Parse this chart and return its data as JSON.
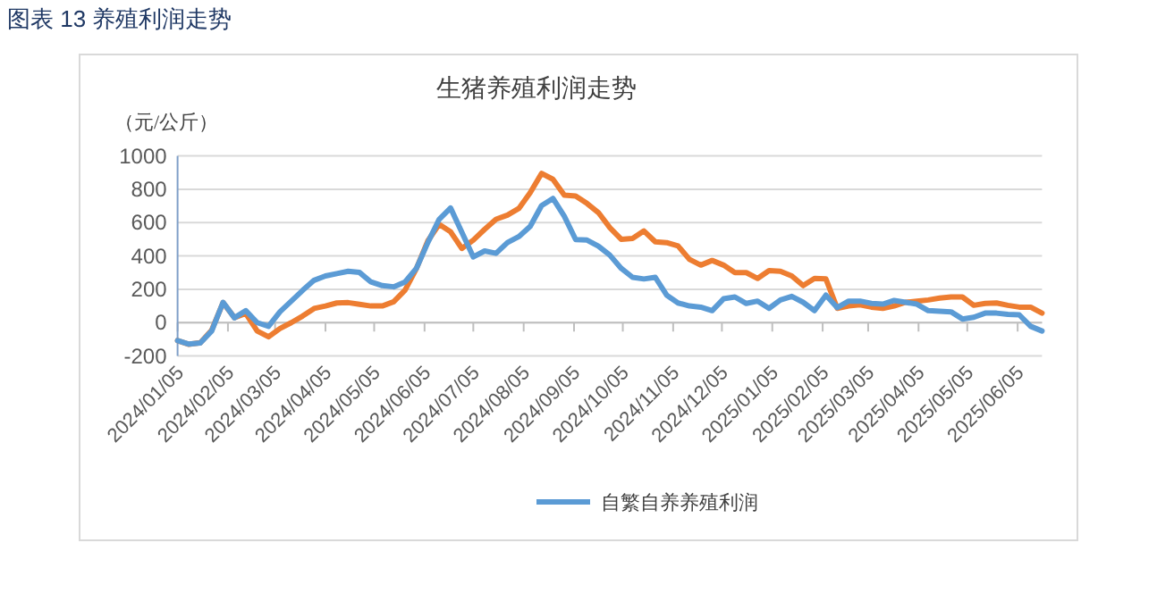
{
  "chart_data": {
    "type": "line",
    "title": "图表 13 养殖利润走势",
    "subtitle": "生猪养殖利润走势",
    "ylabel": "（元/公斤）",
    "x": [
      "2024-01-05",
      "2024-01-12",
      "2024-01-19",
      "2024-01-26",
      "2024-02-02",
      "2024-02-09",
      "2024-02-16",
      "2024-02-23",
      "2024-03-01",
      "2024-03-08",
      "2024-03-15",
      "2024-03-22",
      "2024-03-29",
      "2024-04-05",
      "2024-04-12",
      "2024-04-19",
      "2024-04-26",
      "2024-05-03",
      "2024-05-10",
      "2024-05-17",
      "2024-05-24",
      "2024-05-31",
      "2024-06-07",
      "2024-06-14",
      "2024-06-21",
      "2024-06-28",
      "2024-07-05",
      "2024-07-12",
      "2024-07-19",
      "2024-07-26",
      "2024-08-02",
      "2024-08-09",
      "2024-08-16",
      "2024-08-23",
      "2024-08-30",
      "2024-09-06",
      "2024-09-13",
      "2024-09-20",
      "2024-09-27",
      "2024-10-04",
      "2024-10-11",
      "2024-10-18",
      "2024-10-25",
      "2024-11-01",
      "2024-11-08",
      "2024-11-15",
      "2024-11-22",
      "2024-11-29",
      "2024-12-06",
      "2024-12-13",
      "2024-12-20",
      "2024-12-27",
      "2025-01-03",
      "2025-01-10",
      "2025-01-17",
      "2025-01-24",
      "2025-01-31",
      "2025-02-07",
      "2025-02-14",
      "2025-02-21",
      "2025-02-28",
      "2025-03-07",
      "2025-03-14",
      "2025-03-21",
      "2025-03-28",
      "2025-04-04",
      "2025-04-11",
      "2025-04-18",
      "2025-04-25",
      "2025-05-02",
      "2025-05-09",
      "2025-05-16",
      "2025-05-23",
      "2025-05-30",
      "2025-06-06",
      "2025-06-13",
      "2025-06-20"
    ],
    "series": [
      {
        "name": "自繁自养养殖利润",
        "color": "#5b9bd5",
        "values": [
          -108,
          -129,
          -122,
          -50,
          122,
          29,
          72,
          0,
          -22,
          65,
          129,
          194,
          254,
          280,
          294,
          308,
          301,
          244,
          222,
          215,
          244,
          326,
          480,
          620,
          688,
          541,
          394,
          430,
          416,
          480,
          516,
          577,
          702,
          745,
          638,
          498,
          495,
          459,
          405,
          326,
          272,
          262,
          272,
          165,
          118,
          100,
          93,
          72,
          143,
          154,
          115,
          129,
          86,
          136,
          158,
          122,
          72,
          165,
          90,
          129,
          129,
          115,
          111,
          133,
          122,
          111,
          72,
          68,
          65,
          22,
          32,
          57,
          57,
          50,
          47,
          -22,
          -50
        ]
      },
      {
        "color": "#ed7d31",
        "values": [
          -108,
          -130,
          -120,
          -45,
          120,
          30,
          55,
          -50,
          -85,
          -35,
          0,
          40,
          85,
          100,
          118,
          120,
          110,
          100,
          100,
          125,
          195,
          325,
          490,
          590,
          545,
          445,
          495,
          560,
          620,
          645,
          685,
          780,
          895,
          860,
          765,
          760,
          715,
          660,
          570,
          500,
          505,
          550,
          485,
          480,
          460,
          380,
          345,
          373,
          345,
          300,
          300,
          265,
          312,
          308,
          280,
          222,
          265,
          262,
          86,
          100,
          107,
          93,
          86,
          100,
          122,
          129,
          136,
          147,
          154,
          154,
          104,
          115,
          118,
          104,
          93,
          93,
          57
        ]
      }
    ],
    "xlim": [
      "2024-01-05",
      "2025-06-20"
    ],
    "xticks": [
      {
        "value": "2024-01-05",
        "label": "2024/01/05"
      },
      {
        "value": "2024-02-05",
        "label": "2024/02/05"
      },
      {
        "value": "2024-03-05",
        "label": "2024/03/05"
      },
      {
        "value": "2024-04-05",
        "label": "2024/04/05"
      },
      {
        "value": "2024-05-05",
        "label": "2024/05/05"
      },
      {
        "value": "2024-06-05",
        "label": "2024/06/05"
      },
      {
        "value": "2024-07-05",
        "label": "2024/07/05"
      },
      {
        "value": "2024-08-05",
        "label": "2024/08/05"
      },
      {
        "value": "2024-09-05",
        "label": "2024/09/05"
      },
      {
        "value": "2024-10-05",
        "label": "2024/10/05"
      },
      {
        "value": "2024-11-05",
        "label": "2024/11/05"
      },
      {
        "value": "2024-12-05",
        "label": "2024/12/05"
      },
      {
        "value": "2025-01-05",
        "label": "2025/01/05"
      },
      {
        "value": "2025-02-05",
        "label": "2025/02/05"
      },
      {
        "value": "2025-03-05",
        "label": "2025/03/05"
      },
      {
        "value": "2025-04-05",
        "label": "2025/04/05"
      },
      {
        "value": "2025-05-05",
        "label": "2025/05/05"
      },
      {
        "value": "2025-06-05",
        "label": "2025/06/05"
      }
    ],
    "ylim": [
      -200,
      1000
    ],
    "yticks": [
      -200,
      0,
      200,
      400,
      600,
      800,
      1000
    ],
    "grid": "y",
    "legend": "bottom"
  }
}
